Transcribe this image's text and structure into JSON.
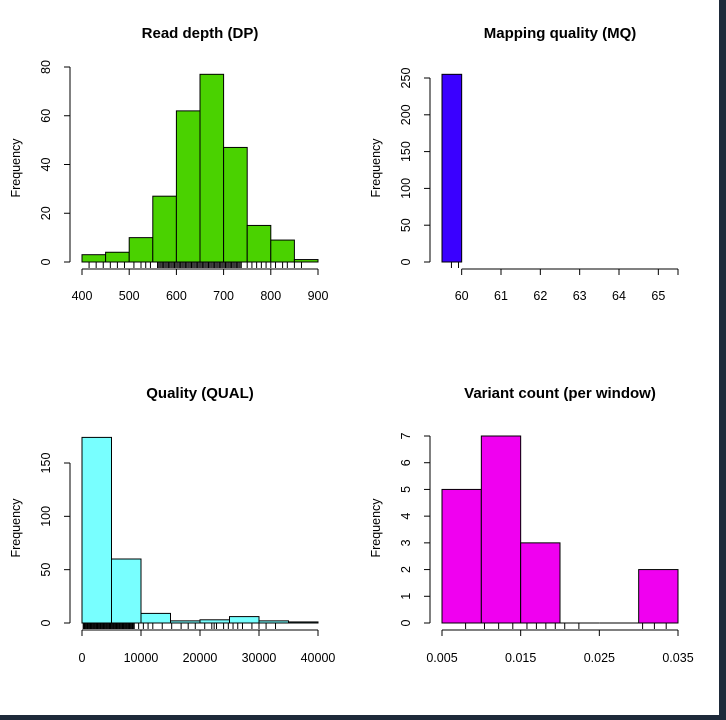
{
  "chart_data": [
    {
      "type": "bar",
      "title": "Read depth (DP)",
      "ylabel": "Frequency",
      "xlabel": "",
      "color": "#4ad200",
      "bin_edges": [
        400,
        450,
        500,
        550,
        600,
        650,
        700,
        750,
        800,
        850,
        900
      ],
      "values": [
        3,
        4,
        10,
        27,
        62,
        77,
        47,
        15,
        9,
        1
      ],
      "xlim": [
        400,
        900
      ],
      "ylim": [
        0,
        80
      ],
      "xticks": [
        "400",
        "500",
        "600",
        "700",
        "800",
        "900"
      ],
      "yticks": [
        "0",
        "20",
        "40",
        "60",
        "80"
      ],
      "rug": true,
      "grid": false
    },
    {
      "type": "bar",
      "title": "Mapping quality (MQ)",
      "ylabel": "Frequency",
      "xlabel": "",
      "color": "#3a00ff",
      "bin_edges": [
        59.5,
        60
      ],
      "values": [
        255
      ],
      "xlim": [
        59.5,
        65.5
      ],
      "ylim": [
        0,
        250
      ],
      "xticks": [
        "60",
        "61",
        "62",
        "63",
        "64",
        "65"
      ],
      "yticks": [
        "0",
        "50",
        "100",
        "150",
        "200",
        "250"
      ],
      "rug": true,
      "grid": false
    },
    {
      "type": "bar",
      "title": "Quality (QUAL)",
      "ylabel": "Frequency",
      "xlabel": "",
      "color": "#78ffff",
      "bin_edges": [
        0,
        5000,
        10000,
        15000,
        20000,
        25000,
        30000,
        35000,
        40000
      ],
      "values": [
        174,
        60,
        9,
        2,
        3,
        6,
        2,
        1
      ],
      "xlim": [
        0,
        40000
      ],
      "ylim": [
        0,
        150
      ],
      "xticks": [
        "0",
        "10000",
        "20000",
        "30000",
        "40000"
      ],
      "yticks": [
        "0",
        "50",
        "100",
        "150"
      ],
      "rug": true,
      "grid": false
    },
    {
      "type": "bar",
      "title": "Variant count (per window)",
      "ylabel": "Frequency",
      "xlabel": "",
      "color": "#f000f0",
      "bin_edges": [
        0.005,
        0.01,
        0.015,
        0.02,
        0.025,
        0.03,
        0.035
      ],
      "values": [
        5,
        7,
        3,
        0,
        0,
        2
      ],
      "xlim": [
        0.005,
        0.035
      ],
      "ylim": [
        0,
        7
      ],
      "xticks": [
        "0.005",
        "0.015",
        "0.025",
        "0.035"
      ],
      "yticks": [
        "0",
        "1",
        "2",
        "3",
        "4",
        "5",
        "6",
        "7"
      ],
      "rug": true,
      "grid": false
    }
  ]
}
